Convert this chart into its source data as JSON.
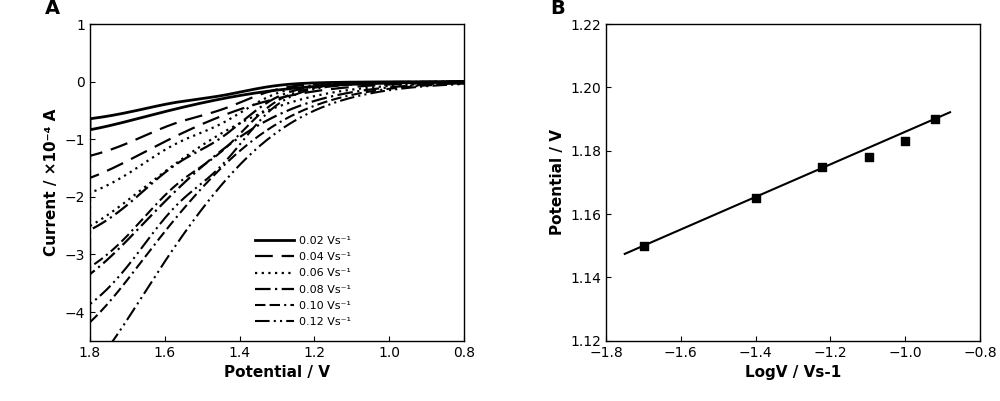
{
  "panel_A": {
    "label": "A",
    "xlabel": "Potential / V",
    "ylabel": "Current / ×10⁻⁴ A",
    "xlim": [
      1.8,
      0.8
    ],
    "ylim": [
      -4.5,
      1.0
    ],
    "yticks": [
      -4,
      -3,
      -2,
      -1,
      0,
      1
    ],
    "xticks": [
      1.8,
      1.6,
      1.4,
      1.2,
      1.0,
      0.8
    ],
    "scan_rates": [
      0.02,
      0.04,
      0.06,
      0.08,
      0.1,
      0.12
    ],
    "legend_labels": [
      "0.02 Vs⁻¹",
      "0.04 Vs⁻¹",
      "0.06 Vs⁻¹",
      "0.08 Vs⁻¹",
      "0.10 Vs⁻¹",
      "0.12 Vs⁻¹"
    ]
  },
  "panel_B": {
    "label": "B",
    "xlabel": "LogV / Vs-1",
    "ylabel": "Potential / V",
    "xlim": [
      -1.8,
      -0.8
    ],
    "ylim": [
      1.12,
      1.22
    ],
    "xticks": [
      -1.8,
      -1.6,
      -1.4,
      -1.2,
      -1.0,
      -0.8
    ],
    "yticks": [
      1.12,
      1.14,
      1.16,
      1.18,
      1.2,
      1.22
    ],
    "scatter_x": [
      -1.699,
      -1.398,
      -1.222,
      -1.097,
      -1.0,
      -0.921
    ],
    "scatter_y": [
      1.15,
      1.165,
      1.175,
      1.178,
      1.183,
      1.19
    ],
    "fit_slope": 0.0514,
    "fit_intercept": 1.2374
  }
}
